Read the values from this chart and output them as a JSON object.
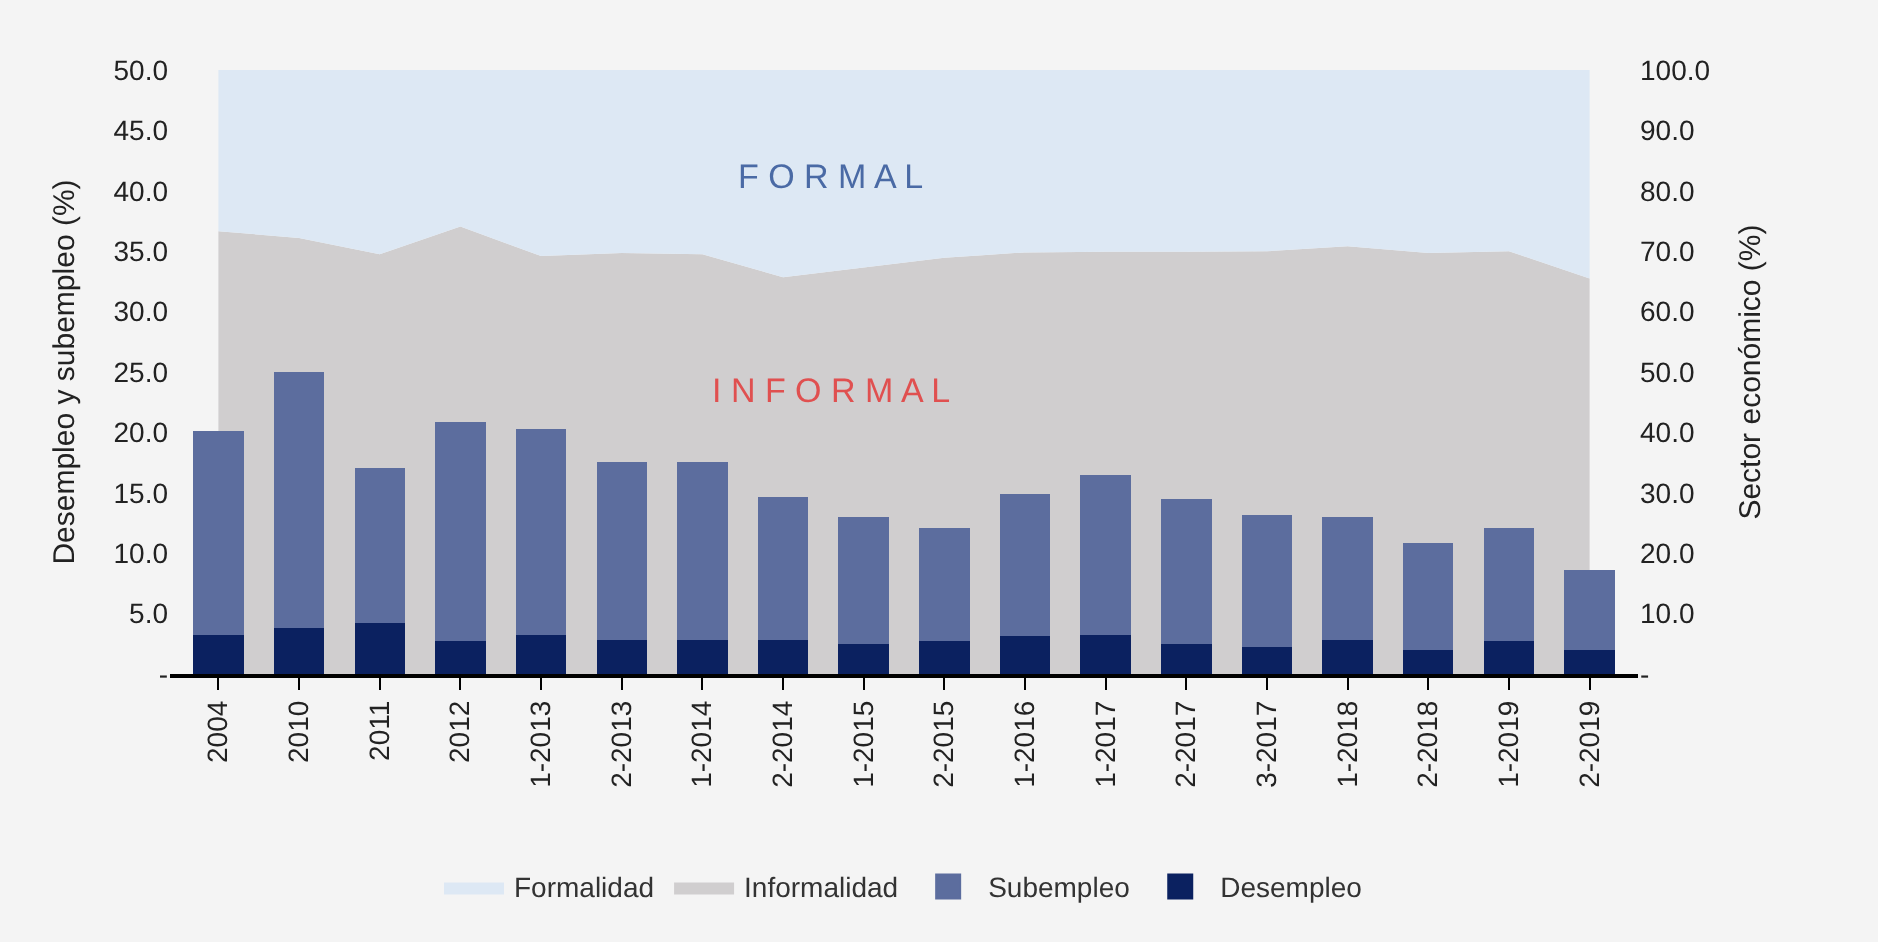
{
  "chart_data": {
    "type": "bar",
    "stacked": true,
    "ylabel": "Desempleo y subempleo (%)",
    "y2label": "Sector económico (%)",
    "categories": [
      "2004",
      "2010",
      "2011",
      "2012",
      "1-2013",
      "2-2013",
      "1-2014",
      "2-2014",
      "1-2015",
      "2-2015",
      "1-2016",
      "1-2017",
      "2-2017",
      "3-2017",
      "1-2018",
      "2-2018",
      "1-2019",
      "2-2019"
    ],
    "series": [
      {
        "name": "Informalidad",
        "type": "area",
        "axis": "y2",
        "color": "#d0cecf",
        "values": [
          73.3,
          72.2,
          69.5,
          74.1,
          69.2,
          69.7,
          69.5,
          65.7,
          67.3,
          68.9,
          69.8,
          69.9,
          69.9,
          70.0,
          70.8,
          69.7,
          70.0,
          65.5
        ]
      },
      {
        "name": "Formalidad",
        "type": "area",
        "axis": "y2",
        "color": "#dde8f4",
        "values": [
          26.7,
          27.8,
          30.5,
          25.9,
          30.8,
          30.3,
          30.5,
          34.3,
          32.7,
          31.1,
          30.2,
          30.1,
          30.1,
          30.0,
          29.2,
          30.3,
          30.0,
          34.5
        ]
      },
      {
        "name": "Desempleo",
        "type": "bar",
        "color": "#0b2160",
        "values": [
          3.3,
          3.9,
          4.3,
          2.8,
          3.3,
          2.9,
          2.9,
          2.9,
          2.6,
          2.8,
          3.2,
          3.3,
          2.6,
          2.3,
          2.9,
          2.1,
          2.8,
          2.1
        ]
      },
      {
        "name": "Subempleo",
        "color": "#5c6d9e",
        "values": [
          16.7,
          21.0,
          12.7,
          18.0,
          16.9,
          14.6,
          14.6,
          11.7,
          10.3,
          9.2,
          11.6,
          13.1,
          11.8,
          10.8,
          10.0,
          8.7,
          9.2,
          6.4
        ]
      }
    ],
    "ylim": [
      0,
      50
    ],
    "yticks": [
      {
        "value": 0,
        "label": "-"
      },
      {
        "value": 5,
        "label": "5.0"
      },
      {
        "value": 10,
        "label": "10.0"
      },
      {
        "value": 15,
        "label": "15.0"
      },
      {
        "value": 20,
        "label": "20.0"
      },
      {
        "value": 25,
        "label": "25.0"
      },
      {
        "value": 30,
        "label": "30.0"
      },
      {
        "value": 35,
        "label": "35.0"
      },
      {
        "value": 40,
        "label": "40.0"
      },
      {
        "value": 45,
        "label": "45.0"
      },
      {
        "value": 50,
        "label": "50.0"
      }
    ],
    "y2lim": [
      0,
      100
    ],
    "y2ticks": [
      {
        "value": 0,
        "label": "-"
      },
      {
        "value": 10,
        "label": "10.0"
      },
      {
        "value": 20,
        "label": "20.0"
      },
      {
        "value": 30,
        "label": "30.0"
      },
      {
        "value": 40,
        "label": "40.0"
      },
      {
        "value": 50,
        "label": "50.0"
      },
      {
        "value": 60,
        "label": "60.0"
      },
      {
        "value": 70,
        "label": "70.0"
      },
      {
        "value": 80,
        "label": "80.0"
      },
      {
        "value": 90,
        "label": "90.0"
      },
      {
        "value": 100,
        "label": "100.0"
      }
    ],
    "annotations": [
      "F O R M A L",
      "I N F O R M A L"
    ],
    "legend": "bottom",
    "grid": false
  }
}
